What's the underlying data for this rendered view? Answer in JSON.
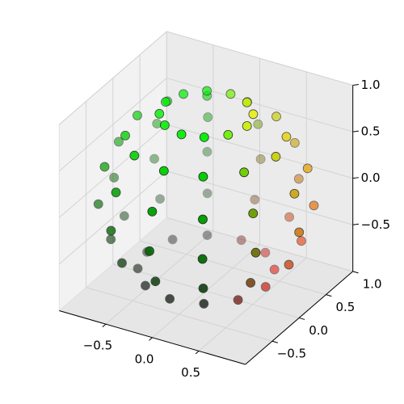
{
  "chart_data": {
    "type": "scatter3d",
    "xlim": [
      -1,
      1
    ],
    "ylim": [
      -1,
      1
    ],
    "zlim": [
      -1,
      1
    ],
    "xticks": [
      {
        "value": -0.5,
        "label": "−0.5"
      },
      {
        "value": 0,
        "label": "0.0"
      },
      0.5
    ],
    "yticks": [
      {
        "value": -0.5,
        "label": "−0.5"
      },
      {
        "value": 0,
        "label": "0.0"
      },
      0.5,
      {
        "value": 1,
        "label": "1.0"
      }
    ],
    "zticks": [
      {
        "value": -0.5,
        "label": "−0.5"
      },
      {
        "value": 0,
        "label": "0.0"
      },
      0.5,
      {
        "value": 1,
        "label": "1.0"
      }
    ],
    "grid": true,
    "series": [
      {
        "x": [
          0.44,
          0.38,
          0.22,
          0.01,
          -0.21,
          -0.37,
          -0.44,
          -0.38,
          -0.23,
          -0.01,
          0.2,
          0.37,
          0.75,
          0.65,
          0.38,
          0.01,
          -0.37,
          -0.64,
          -0.75,
          -0.66,
          -0.4,
          -0.02,
          0.35,
          0.64,
          0.95,
          0.82,
          0.48,
          0.01,
          -0.46,
          -0.81,
          -0.95,
          -0.83,
          -0.5,
          -0.03,
          0.45,
          0.8,
          1.0,
          0.87,
          0.5,
          0.01,
          -0.49,
          -0.85,
          -1.0,
          -0.88,
          -0.53,
          -0.03,
          0.47,
          0.84,
          0.89,
          0.77,
          0.45,
          0.01,
          -0.43,
          -0.76,
          -0.89,
          -0.78,
          -0.47,
          -0.03,
          0.42,
          0.75,
          0.64,
          0.55,
          0.32,
          0.01,
          -0.31,
          -0.55,
          -0.64,
          -0.56,
          -0.34,
          -0.02,
          0.3,
          0.54
        ],
        "y": [
          0,
          0.22,
          0.38,
          0.44,
          0.38,
          0.22,
          0.01,
          -0.21,
          -0.37,
          -0.44,
          -0.38,
          -0.23,
          0,
          0.37,
          0.65,
          0.75,
          0.66,
          0.39,
          0.02,
          -0.36,
          -0.64,
          -0.75,
          -0.66,
          -0.4,
          0,
          0.47,
          0.82,
          0.95,
          0.83,
          0.49,
          0.02,
          -0.45,
          -0.81,
          -0.95,
          -0.84,
          -0.51,
          0,
          0.5,
          0.86,
          1.0,
          0.87,
          0.51,
          0.02,
          -0.48,
          -0.85,
          -1.0,
          -0.88,
          -0.53,
          0,
          0.44,
          0.77,
          0.89,
          0.77,
          0.46,
          0.02,
          -0.42,
          -0.75,
          -0.89,
          -0.78,
          -0.47,
          0,
          0.32,
          0.55,
          0.64,
          0.56,
          0.33,
          0.01,
          -0.3,
          -0.54,
          -0.64,
          -0.56,
          -0.34
        ],
        "z": [
          0.9,
          0.9,
          0.9,
          0.9,
          0.9,
          0.9,
          0.9,
          0.9,
          0.9,
          0.9,
          0.9,
          0.9,
          0.66,
          0.66,
          0.66,
          0.66,
          0.66,
          0.66,
          0.66,
          0.66,
          0.66,
          0.66,
          0.66,
          0.66,
          0.32,
          0.32,
          0.32,
          0.32,
          0.32,
          0.32,
          0.32,
          0.32,
          0.32,
          0.32,
          0.32,
          0.32,
          -0.08,
          -0.08,
          -0.08,
          -0.08,
          -0.08,
          -0.08,
          -0.08,
          -0.08,
          -0.08,
          -0.08,
          -0.08,
          -0.08,
          -0.46,
          -0.46,
          -0.46,
          -0.46,
          -0.46,
          -0.46,
          -0.46,
          -0.46,
          -0.46,
          -0.46,
          -0.46,
          -0.46,
          -0.77,
          -0.77,
          -0.77,
          -0.77,
          -0.77,
          -0.77,
          -0.77,
          -0.77,
          -0.77,
          -0.77,
          -0.77,
          -0.77
        ],
        "colors": [
          "#c8f000",
          "#e6f000",
          "#c8f000",
          "#74f000",
          "#03f000",
          "#00f000",
          "#00f000",
          "#00f000",
          "#00f000",
          "#00f000",
          "#00f000",
          "#6cf000",
          "#c8cf00",
          "#e6cf00",
          "#c8cf00",
          "#74cf00",
          "#03cf00",
          "#00cf00",
          "#00cf00",
          "#00cf00",
          "#00cf00",
          "#00cf00",
          "#00cf00",
          "#6ccf00",
          "#c8a000",
          "#e6a000",
          "#c8a000",
          "#74a000",
          "#03a000",
          "#00a000",
          "#00a000",
          "#00a000",
          "#00a000",
          "#00a000",
          "#00a000",
          "#6ca000",
          "#c86a00",
          "#e66a00",
          "#c86a00",
          "#746a00",
          "#036a00",
          "#006a00",
          "#006a00",
          "#006a00",
          "#006a00",
          "#006a00",
          "#006a00",
          "#6c6a00",
          "#c83600",
          "#e63600",
          "#c83600",
          "#743600",
          "#033600",
          "#003600",
          "#003600",
          "#003600",
          "#003600",
          "#003600",
          "#003600",
          "#6c3600",
          "#c80b00",
          "#e60b00",
          "#c80b00",
          "#740b00",
          "#030b00",
          "#000b00",
          "#000b00",
          "#000b00",
          "#000b00",
          "#000b00",
          "#000b00",
          "#6c0b00"
        ]
      }
    ]
  }
}
